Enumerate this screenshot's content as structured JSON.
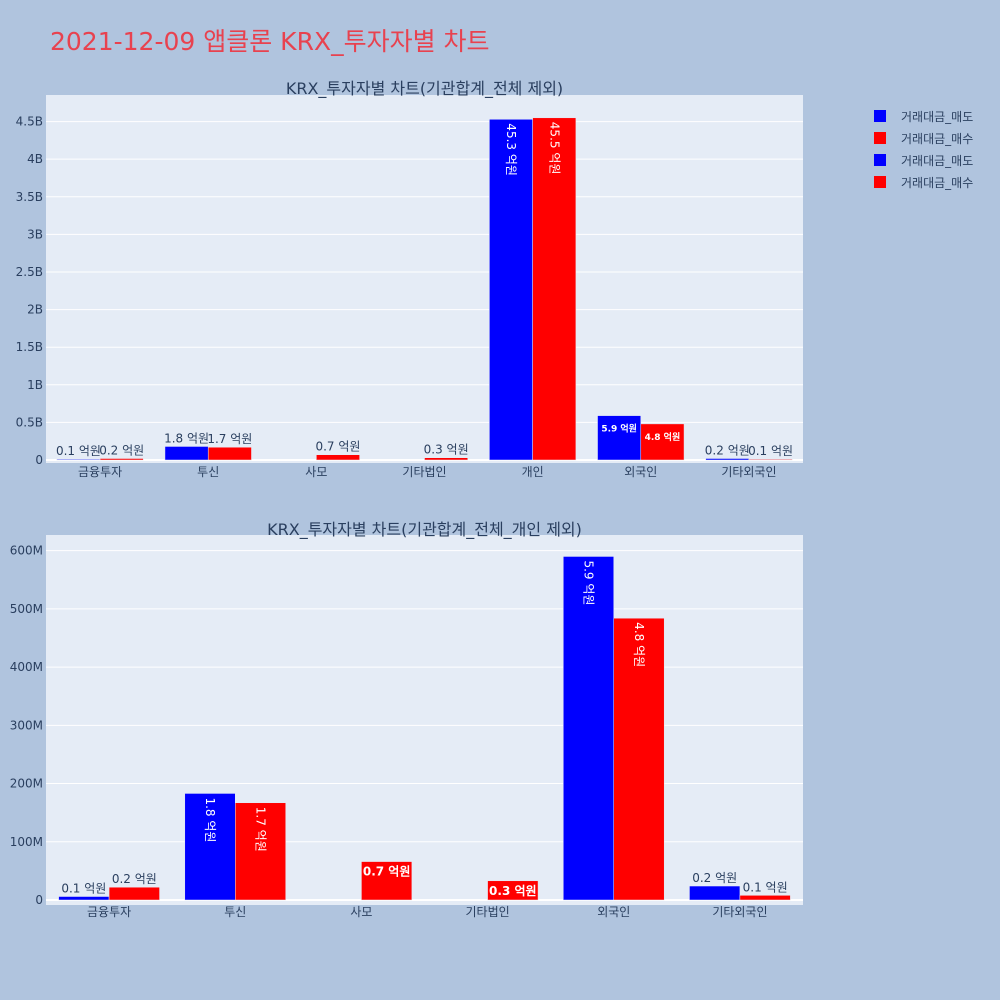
{
  "page_title": "2021-12-09 앱클론 KRX_투자자별 차트",
  "legend": [
    {
      "name": "거래대금_매도",
      "color": "#0000ff"
    },
    {
      "name": "거래대금_매수",
      "color": "#ff0000"
    },
    {
      "name": "거래대금_매도",
      "color": "#0000ff"
    },
    {
      "name": "거래대금_매수",
      "color": "#ff0000"
    }
  ],
  "chart_data": [
    {
      "type": "bar",
      "title": "KRX_투자자별 차트(기관합계_전체 제외)",
      "categories": [
        "금융투자",
        "투신",
        "사모",
        "기타법인",
        "개인",
        "외국인",
        "기타외국인"
      ],
      "ylim": [
        0,
        4800000000
      ],
      "yticks": [
        0,
        500000000,
        1000000000,
        1500000000,
        2000000000,
        2500000000,
        3000000000,
        3500000000,
        4000000000,
        4500000000
      ],
      "ytick_labels": [
        "0",
        "0.5B",
        "1B",
        "1.5B",
        "2B",
        "2.5B",
        "3B",
        "3.5B",
        "4B",
        "4.5B"
      ],
      "grid": true,
      "series": [
        {
          "name": "거래대금_매도",
          "color": "#0000ff",
          "values": [
            10000000,
            180000000,
            0,
            0,
            4530000000,
            590000000,
            20000000
          ],
          "labels": [
            "0.1 억원",
            "1.8 억원",
            "",
            "",
            "45.3 억원",
            "5.9 억원",
            "0.2 억원"
          ]
        },
        {
          "name": "거래대금_매수",
          "color": "#ff0000",
          "values": [
            20000000,
            170000000,
            70000000,
            30000000,
            4550000000,
            480000000,
            10000000
          ],
          "labels": [
            "0.2 억원",
            "1.7 억원",
            "0.7 억원",
            "0.3 억원",
            "45.5 억원",
            "4.8 억원",
            "0.1 억원"
          ]
        }
      ]
    },
    {
      "type": "bar",
      "title": "KRX_투자자별 차트(기관합계_전체_개인 제외)",
      "categories": [
        "금융투자",
        "투신",
        "사모",
        "기타법인",
        "외국인",
        "기타외국인"
      ],
      "ylim": [
        0,
        620000000
      ],
      "yticks": [
        0,
        100000000,
        200000000,
        300000000,
        400000000,
        500000000,
        600000000
      ],
      "ytick_labels": [
        "0",
        "100M",
        "200M",
        "300M",
        "400M",
        "500M",
        "600M"
      ],
      "grid": true,
      "series": [
        {
          "name": "거래대금_매도",
          "color": "#0000ff",
          "values": [
            6000000,
            183000000,
            0,
            0,
            590000000,
            24000000
          ],
          "labels": [
            "0.1 억원",
            "1.8 억원",
            "",
            "",
            "5.9 억원",
            "0.2 억원"
          ]
        },
        {
          "name": "거래대금_매수",
          "color": "#ff0000",
          "values": [
            22000000,
            167000000,
            66000000,
            33000000,
            484000000,
            8000000
          ],
          "labels": [
            "0.2 억원",
            "1.7 억원",
            "0.7 억원",
            "0.3 억원",
            "4.8 억원",
            "0.1 억원"
          ]
        }
      ]
    }
  ]
}
